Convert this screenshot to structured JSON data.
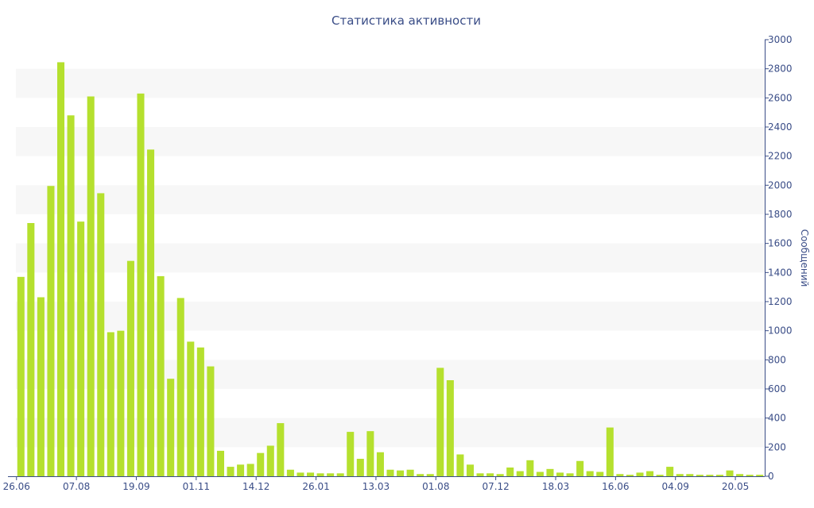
{
  "chart_data": {
    "type": "bar",
    "title": "Статистика активности",
    "xlabel": "",
    "ylabel": "Сообщений",
    "y_axis_side": "right",
    "ylim": [
      0,
      3000
    ],
    "y_ticks": [
      0,
      200,
      400,
      600,
      800,
      1000,
      1200,
      1400,
      1600,
      1800,
      2000,
      2200,
      2400,
      2600,
      2800,
      3000
    ],
    "x_tick_labels": [
      "26.06",
      "07.08",
      "19.09",
      "01.11",
      "14.12",
      "26.01",
      "13.03",
      "01.08",
      "07.12",
      "18.03",
      "16.06",
      "04.09",
      "20.05"
    ],
    "x_tick_bar_index": [
      0,
      6,
      12,
      18,
      24,
      30,
      36,
      42,
      48,
      54,
      60,
      66,
      72
    ],
    "grid": "alternating horizontal bands",
    "bar_color": "#b5e02e",
    "band_color": "#f7f7f7",
    "text_color": "#3a4d87",
    "values": [
      1370,
      1740,
      1230,
      1995,
      2845,
      2480,
      1750,
      2610,
      1945,
      990,
      1000,
      1480,
      2630,
      2245,
      1375,
      670,
      1225,
      925,
      885,
      755,
      175,
      65,
      80,
      85,
      160,
      210,
      365,
      45,
      25,
      25,
      20,
      20,
      20,
      305,
      120,
      310,
      165,
      45,
      40,
      45,
      15,
      15,
      745,
      660,
      150,
      80,
      20,
      20,
      15,
      60,
      35,
      110,
      30,
      50,
      25,
      20,
      105,
      35,
      30,
      335,
      15,
      10,
      25,
      35,
      10,
      65,
      15,
      15,
      10,
      10,
      10,
      40,
      15,
      10,
      10
    ]
  }
}
